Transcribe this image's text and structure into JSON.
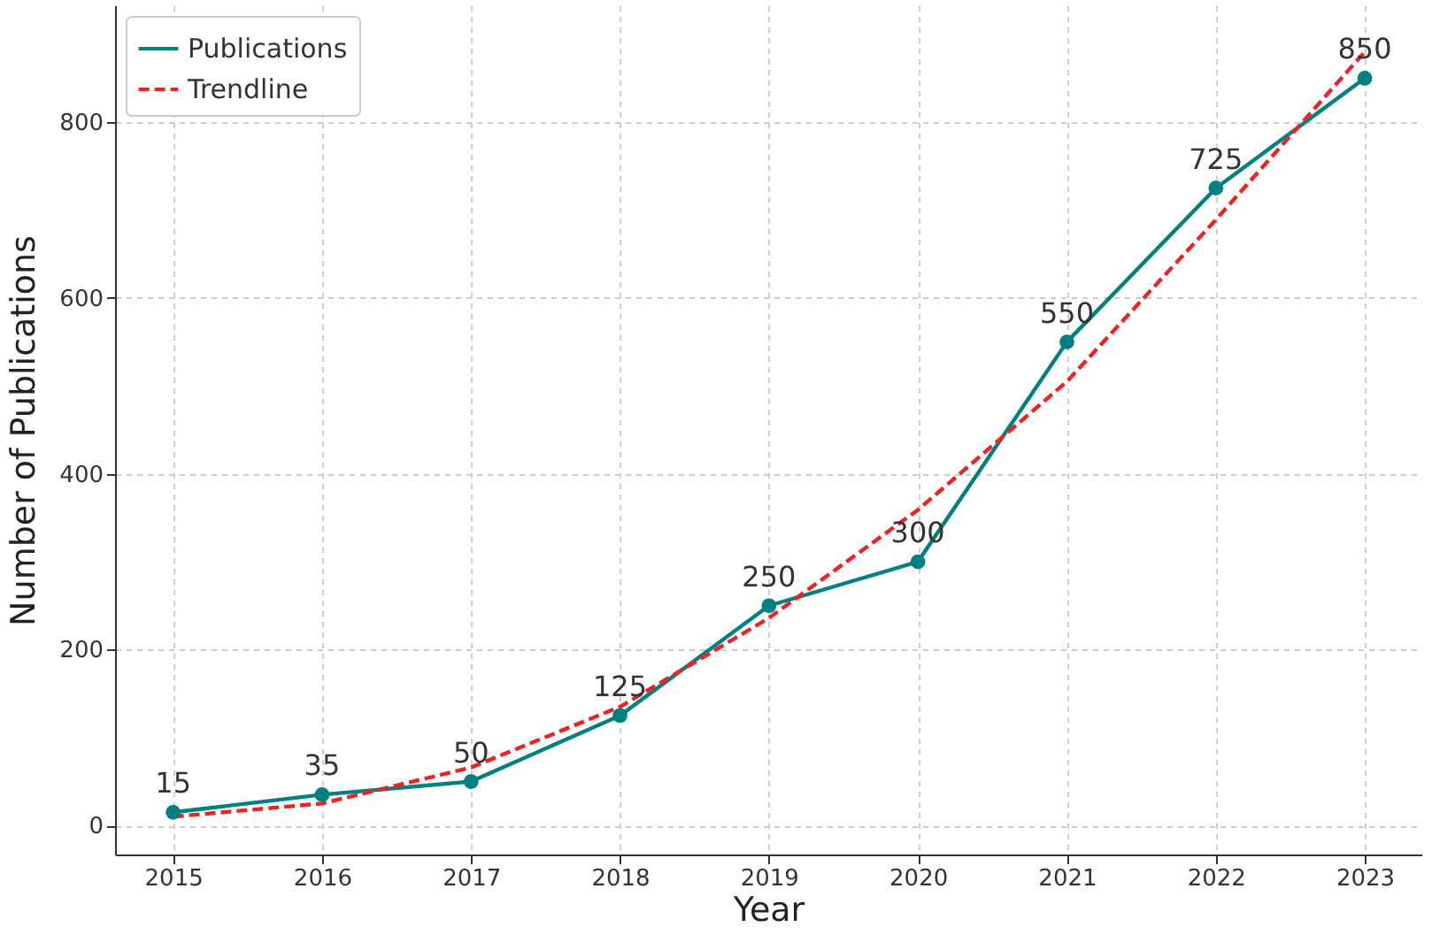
{
  "chart_data": {
    "type": "line",
    "xlabel": "Year",
    "ylabel": "Number of Publications",
    "x": [
      2015,
      2016,
      2017,
      2018,
      2019,
      2020,
      2021,
      2022,
      2023
    ],
    "series": [
      {
        "name": "Publications",
        "color": "#008080",
        "marker": "circle",
        "line_style": "solid",
        "values": [
          15,
          35,
          50,
          125,
          250,
          300,
          550,
          725,
          850
        ],
        "value_labels": [
          "15",
          "35",
          "50",
          "125",
          "250",
          "300",
          "550",
          "725",
          "850"
        ]
      },
      {
        "name": "Trendline",
        "color": "#ee2222",
        "marker": "none",
        "line_style": "dashed",
        "values": [
          10,
          25,
          66,
          135,
          236,
          359,
          505,
          689,
          880
        ]
      }
    ],
    "xlim": [
      2014.61,
      2023.38
    ],
    "xticks": [
      2015,
      2016,
      2017,
      2018,
      2019,
      2020,
      2021,
      2022,
      2023
    ],
    "ylim": [
      -33,
      933
    ],
    "yticks": [
      0,
      200,
      400,
      600,
      800
    ],
    "grid": true,
    "legend": "top left"
  }
}
